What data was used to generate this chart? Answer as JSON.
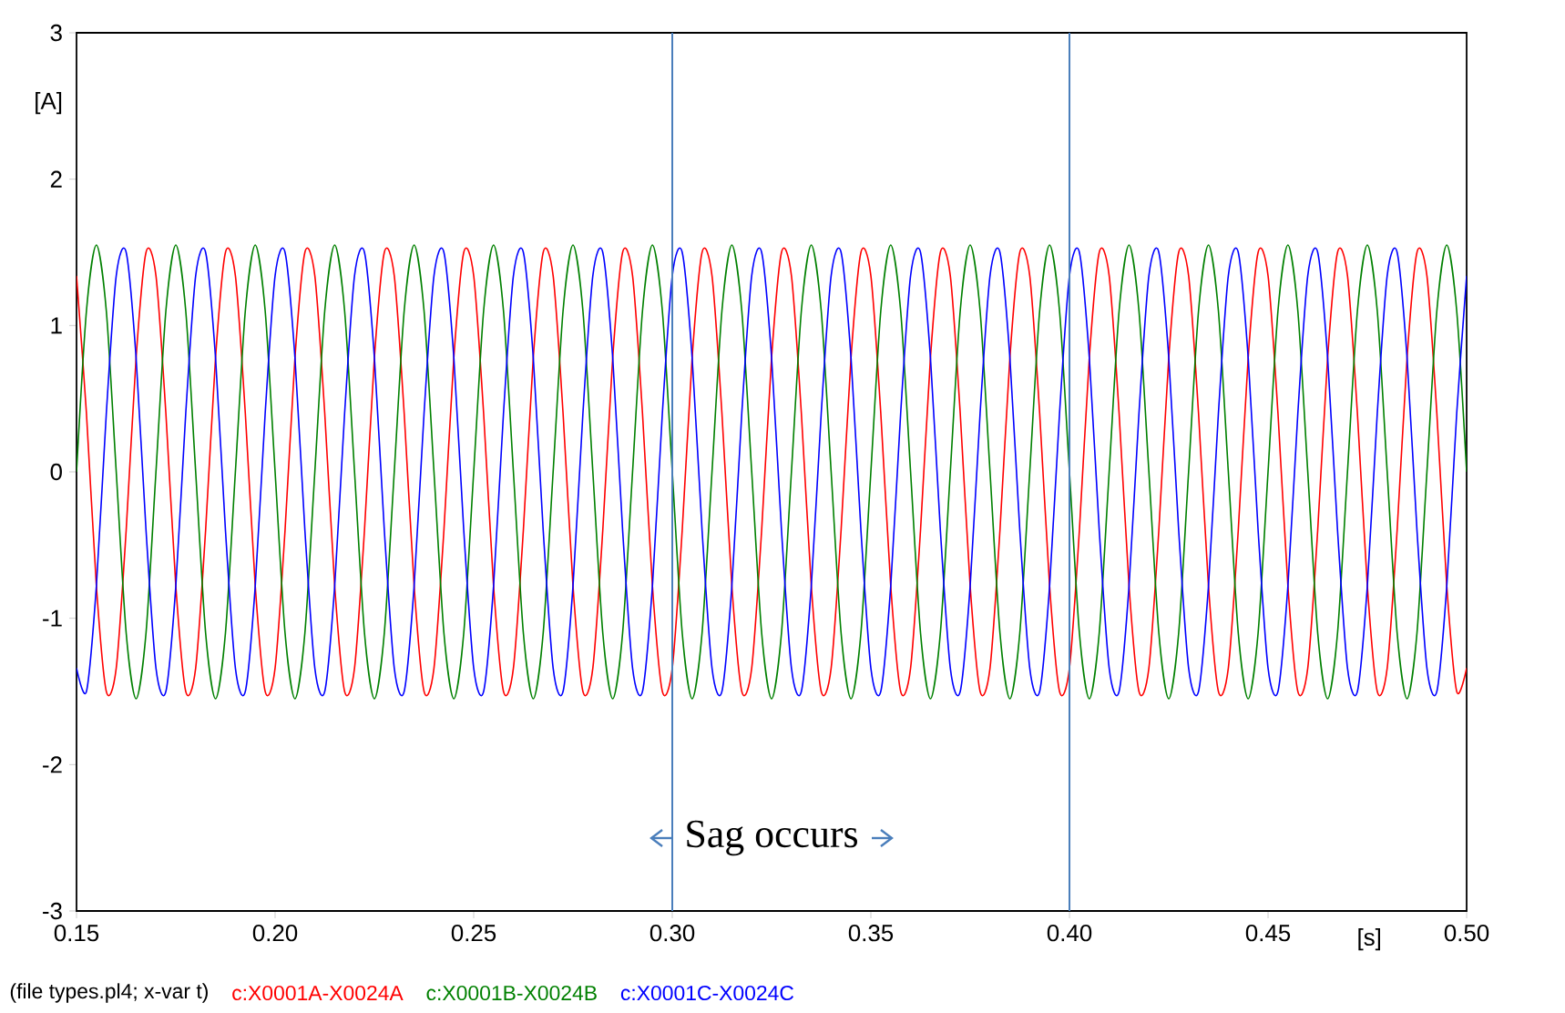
{
  "chart_data": {
    "type": "line",
    "xlabel": "[s]",
    "ylabel": "[A]",
    "xlim": [
      0.15,
      0.5
    ],
    "ylim": [
      -3,
      3
    ],
    "xticks": [
      0.15,
      {
        "value": 0.2,
        "label": "0.20"
      },
      0.25,
      {
        "value": 0.3,
        "label": "0.30"
      },
      0.35,
      {
        "value": 0.4,
        "label": "0.40"
      },
      0.45,
      {
        "value": 0.5,
        "label": "0.50"
      }
    ],
    "yticks": [
      -3,
      -2,
      -1,
      0,
      1,
      2,
      3
    ],
    "legend": "bottom",
    "x": [
      0.15,
      0.1525,
      0.155,
      0.1575,
      0.16,
      0.1625,
      0.165,
      0.1675,
      0.17,
      0.1725,
      0.175,
      0.1775,
      0.18,
      0.1825,
      0.185,
      0.1875,
      0.19,
      0.1925,
      0.195,
      0.1975,
      0.2,
      0.2025,
      0.205,
      0.2075,
      0.21,
      0.2125,
      0.215,
      0.2175,
      0.22,
      0.2225,
      0.225,
      0.2275,
      0.23,
      0.2325,
      0.235,
      0.2375,
      0.24,
      0.2425,
      0.245,
      0.2475,
      0.25,
      0.2525,
      0.255,
      0.2575,
      0.26,
      0.2625,
      0.265,
      0.2675,
      0.27,
      0.2725,
      0.275,
      0.2775,
      0.28,
      0.2825,
      0.285,
      0.2875,
      0.29,
      0.2925,
      0.295,
      0.2975,
      0.3,
      0.3025,
      0.305,
      0.3075,
      0.31,
      0.3125,
      0.315,
      0.3175,
      0.32,
      0.3225,
      0.325,
      0.3275,
      0.33,
      0.3325,
      0.335,
      0.3375,
      0.34,
      0.3425,
      0.345,
      0.3475,
      0.35,
      0.3525,
      0.355,
      0.3575,
      0.36,
      0.3625,
      0.365,
      0.3675,
      0.37,
      0.3725,
      0.375,
      0.3775,
      0.38,
      0.3825,
      0.385,
      0.3875,
      0.39,
      0.3925,
      0.395,
      0.3975,
      0.4,
      0.4025,
      0.405,
      0.4075,
      0.41,
      0.4125,
      0.415,
      0.4175,
      0.42,
      0.4225,
      0.425,
      0.4275,
      0.43,
      0.4325,
      0.435,
      0.4375,
      0.44,
      0.4425,
      0.445,
      0.4475,
      0.45,
      0.4525,
      0.455,
      0.4575,
      0.46,
      0.4625,
      0.465,
      0.4675,
      0.47,
      0.4725,
      0.475,
      0.4775,
      0.48,
      0.4825,
      0.485,
      0.4875,
      0.49,
      0.4925,
      0.495,
      0.4975,
      0.5
    ],
    "series": [
      {
        "name": "c:X0001A-X0024A",
        "color": "#ff0000",
        "values": [
          1.34,
          0.4,
          -0.78,
          -1.5,
          -1.34,
          -0.4,
          0.78,
          1.5,
          1.34,
          0.4,
          -0.78,
          -1.5,
          -1.34,
          -0.4,
          0.78,
          1.5,
          1.34,
          0.4,
          -0.78,
          -1.5,
          -1.34,
          -0.4,
          0.78,
          1.5,
          1.34,
          0.4,
          -0.78,
          -1.5,
          -1.34,
          -0.4,
          0.78,
          1.5,
          1.34,
          0.4,
          -0.78,
          -1.5,
          -1.34,
          -0.4,
          0.78,
          1.5,
          1.34,
          0.4,
          -0.78,
          -1.5,
          -1.34,
          -0.4,
          0.78,
          1.5,
          1.34,
          0.4,
          -0.78,
          -1.5,
          -1.34,
          -0.4,
          0.78,
          1.5,
          1.34,
          0.4,
          -0.78,
          -1.5,
          -1.34,
          -0.4,
          0.78,
          1.5,
          1.34,
          0.4,
          -0.78,
          -1.5,
          -1.34,
          -0.4,
          0.78,
          1.5,
          1.34,
          0.4,
          -0.78,
          -1.5,
          -1.34,
          -0.4,
          0.78,
          1.5,
          1.34,
          0.4,
          -0.78,
          -1.5,
          -1.34,
          -0.4,
          0.78,
          1.5,
          1.34,
          0.4,
          -0.78,
          -1.5,
          -1.34,
          -0.4,
          0.78,
          1.5,
          1.34,
          0.4,
          -0.78,
          -1.5,
          -1.34,
          -0.4,
          0.78,
          1.5,
          1.34,
          0.4,
          -0.78,
          -1.5,
          -1.34,
          -0.4,
          0.78,
          1.5,
          1.34,
          0.4,
          -0.78,
          -1.5,
          -1.34,
          -0.4,
          0.78,
          1.5,
          1.34,
          0.4,
          -0.78,
          -1.5,
          -1.34,
          -0.4,
          0.78,
          1.5,
          1.34,
          0.4,
          -0.78,
          -1.5,
          -1.34,
          -0.4,
          0.78,
          1.5,
          1.34,
          0.4,
          -0.78,
          -1.5,
          -1.34
        ]
      },
      {
        "name": "c:X0001B-X0024B",
        "color": "#008000",
        "values": [
          0,
          1.1,
          1.55,
          1.1,
          0,
          -1.1,
          -1.55,
          -1.1,
          0,
          1.1,
          1.55,
          1.1,
          0,
          -1.1,
          -1.55,
          -1.1,
          0,
          1.1,
          1.55,
          1.1,
          0,
          -1.1,
          -1.55,
          -1.1,
          0,
          1.1,
          1.55,
          1.1,
          0,
          -1.1,
          -1.55,
          -1.1,
          0,
          1.1,
          1.55,
          1.1,
          0,
          -1.1,
          -1.55,
          -1.1,
          0,
          1.1,
          1.55,
          1.1,
          0,
          -1.1,
          -1.55,
          -1.1,
          0,
          1.1,
          1.55,
          1.1,
          0,
          -1.1,
          -1.55,
          -1.1,
          0,
          1.1,
          1.55,
          1.1,
          0,
          -1.1,
          -1.55,
          -1.1,
          0,
          1.1,
          1.55,
          1.1,
          0,
          -1.1,
          -1.55,
          -1.1,
          0,
          1.1,
          1.55,
          1.1,
          0,
          -1.1,
          -1.55,
          -1.1,
          0,
          1.1,
          1.55,
          1.1,
          0,
          -1.1,
          -1.55,
          -1.1,
          0,
          1.1,
          1.55,
          1.1,
          0,
          -1.1,
          -1.55,
          -1.1,
          0,
          1.1,
          1.55,
          1.1,
          0,
          -1.1,
          -1.55,
          -1.1,
          0,
          1.1,
          1.55,
          1.1,
          0,
          -1.1,
          -1.55,
          -1.1,
          0,
          1.1,
          1.55,
          1.1,
          0,
          -1.1,
          -1.55,
          -1.1,
          0,
          1.1,
          1.55,
          1.1,
          0,
          -1.1,
          -1.55,
          -1.1,
          0,
          1.1,
          1.55,
          1.1,
          0,
          -1.1,
          -1.55,
          -1.1,
          0,
          1.1,
          1.55,
          1.1,
          0
        ]
      },
      {
        "name": "c:X0001C-X0024C",
        "color": "#0000ff",
        "values": [
          -1.34,
          -1.5,
          -0.78,
          0.4,
          1.34,
          1.5,
          0.78,
          -0.4,
          -1.34,
          -1.5,
          -0.78,
          0.4,
          1.34,
          1.5,
          0.78,
          -0.4,
          -1.34,
          -1.5,
          -0.78,
          0.4,
          1.34,
          1.5,
          0.78,
          -0.4,
          -1.34,
          -1.5,
          -0.78,
          0.4,
          1.34,
          1.5,
          0.78,
          -0.4,
          -1.34,
          -1.5,
          -0.78,
          0.4,
          1.34,
          1.5,
          0.78,
          -0.4,
          -1.34,
          -1.5,
          -0.78,
          0.4,
          1.34,
          1.5,
          0.78,
          -0.4,
          -1.34,
          -1.5,
          -0.78,
          0.4,
          1.34,
          1.5,
          0.78,
          -0.4,
          -1.34,
          -1.5,
          -0.78,
          0.4,
          1.34,
          1.5,
          0.78,
          -0.4,
          -1.34,
          -1.5,
          -0.78,
          0.4,
          1.34,
          1.5,
          0.78,
          -0.4,
          -1.34,
          -1.5,
          -0.78,
          0.4,
          1.34,
          1.5,
          0.78,
          -0.4,
          -1.34,
          -1.5,
          -0.78,
          0.4,
          1.34,
          1.5,
          0.78,
          -0.4,
          -1.34,
          -1.5,
          -0.78,
          0.4,
          1.34,
          1.5,
          0.78,
          -0.4,
          -1.34,
          -1.5,
          -0.78,
          0.4,
          1.34,
          1.5,
          0.78,
          -0.4,
          -1.34,
          -1.5,
          -0.78,
          0.4,
          1.34,
          1.5,
          0.78,
          -0.4,
          -1.34,
          -1.5,
          -0.78,
          0.4,
          1.34,
          1.5,
          0.78,
          -0.4,
          -1.34,
          -1.5,
          -0.78,
          0.4,
          1.34,
          1.5,
          0.78,
          -0.4,
          -1.34,
          -1.5,
          -0.78,
          0.4,
          1.34,
          1.5,
          0.78,
          -0.4,
          -1.34,
          -1.5,
          -0.78,
          0.4,
          1.34
        ]
      }
    ],
    "ref_lines": [
      {
        "axis": "x",
        "value": 0.3,
        "color": "#4a7ebb"
      },
      {
        "axis": "x",
        "value": 0.4,
        "color": "#4a7ebb"
      }
    ],
    "annotations": [
      "(file types.pl4; x-var t)",
      "Sag occurs"
    ]
  }
}
